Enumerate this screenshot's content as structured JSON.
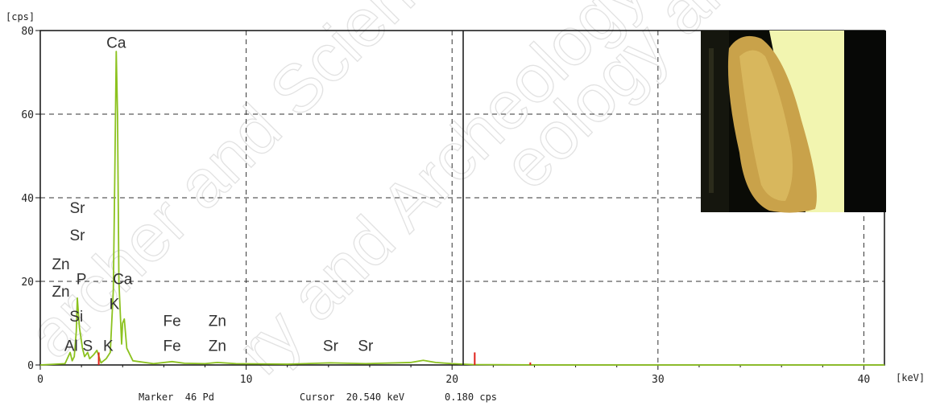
{
  "chart_data": {
    "type": "line",
    "xlabel": "[keV]",
    "ylabel": "[cps]",
    "xlim": [
      0,
      41
    ],
    "ylim": [
      0,
      80
    ],
    "x_ticks": [
      0,
      10,
      20,
      30,
      40
    ],
    "y_ticks": [
      0,
      20,
      40,
      60,
      80
    ],
    "grid": "dashed",
    "spectrum": {
      "color": "#8cc21f",
      "points": [
        [
          0,
          0
        ],
        [
          1.2,
          0.3
        ],
        [
          1.45,
          3
        ],
        [
          1.55,
          1
        ],
        [
          1.65,
          2
        ],
        [
          1.75,
          8
        ],
        [
          1.8,
          16
        ],
        [
          1.9,
          9
        ],
        [
          2.05,
          4
        ],
        [
          2.15,
          2
        ],
        [
          2.3,
          3
        ],
        [
          2.4,
          1.5
        ],
        [
          2.6,
          2.5
        ],
        [
          2.75,
          3.5
        ],
        [
          2.95,
          0.5
        ],
        [
          3.2,
          1.5
        ],
        [
          3.4,
          3
        ],
        [
          3.55,
          18
        ],
        [
          3.62,
          45
        ],
        [
          3.69,
          75
        ],
        [
          3.75,
          60
        ],
        [
          3.82,
          20
        ],
        [
          3.95,
          5
        ],
        [
          4.0,
          10
        ],
        [
          4.08,
          11
        ],
        [
          4.2,
          4
        ],
        [
          4.5,
          1
        ],
        [
          5.5,
          0.3
        ],
        [
          6.4,
          0.8
        ],
        [
          7.0,
          0.4
        ],
        [
          8.0,
          0.3
        ],
        [
          8.6,
          0.6
        ],
        [
          9.5,
          0.3
        ],
        [
          12,
          0.2
        ],
        [
          14.1,
          0.5
        ],
        [
          15.8,
          0.3
        ],
        [
          18,
          0.6
        ],
        [
          18.6,
          1.1
        ],
        [
          19.2,
          0.6
        ],
        [
          20,
          0.3
        ],
        [
          21,
          0.1
        ],
        [
          25,
          0
        ],
        [
          41,
          0
        ]
      ]
    },
    "peak_label_offsets_cps": {
      "Ca": 2
    },
    "element_labels": [
      {
        "text": "Ca",
        "kev": 3.69,
        "cps": 77
      },
      {
        "text": "Sr",
        "kev": 1.8,
        "cps": 37.5
      },
      {
        "text": "Sr",
        "kev": 1.8,
        "cps": 31
      },
      {
        "text": "Zn",
        "kev": 1.0,
        "cps": 24
      },
      {
        "text": "P",
        "kev": 2.0,
        "cps": 20.5
      },
      {
        "text": "Ca",
        "kev": 4.0,
        "cps": 20.5
      },
      {
        "text": "Zn",
        "kev": 1.0,
        "cps": 17.5
      },
      {
        "text": "K",
        "kev": 3.6,
        "cps": 14.5
      },
      {
        "text": "Si",
        "kev": 1.75,
        "cps": 11.5
      },
      {
        "text": "Fe",
        "kev": 6.4,
        "cps": 10.5
      },
      {
        "text": "Zn",
        "kev": 8.6,
        "cps": 10.5
      },
      {
        "text": "Al",
        "kev": 1.5,
        "cps": 4.5
      },
      {
        "text": "S",
        "kev": 2.3,
        "cps": 4.5
      },
      {
        "text": "K",
        "kev": 3.3,
        "cps": 4.5
      },
      {
        "text": "Fe",
        "kev": 6.4,
        "cps": 4.5
      },
      {
        "text": "Zn",
        "kev": 8.6,
        "cps": 4.5
      },
      {
        "text": "Sr",
        "kev": 14.1,
        "cps": 4.5
      },
      {
        "text": "Sr",
        "kev": 15.8,
        "cps": 4.5
      }
    ],
    "marker_lines": [
      {
        "kev": 2.84,
        "cps": 3.0,
        "color": "#e0201a"
      },
      {
        "kev": 21.1,
        "cps": 3.0,
        "color": "#e0201a"
      },
      {
        "kev": 23.8,
        "cps": 0.6,
        "color": "#e0201a"
      }
    ],
    "cursor": {
      "kev": 20.54,
      "cps": 0.18,
      "color": "#222222"
    }
  },
  "status_bar": {
    "marker": "Marker  46 Pd",
    "cursor": "Cursor  20.540 keV",
    "cursor_value": "0.180 cps"
  },
  "inset_photo": {
    "background": "#0a0b06",
    "paper_color": "#f2f5b0",
    "object_color": "#c9a24a"
  },
  "watermark": "Archer and Scientific Archeology and Archeology Photo"
}
